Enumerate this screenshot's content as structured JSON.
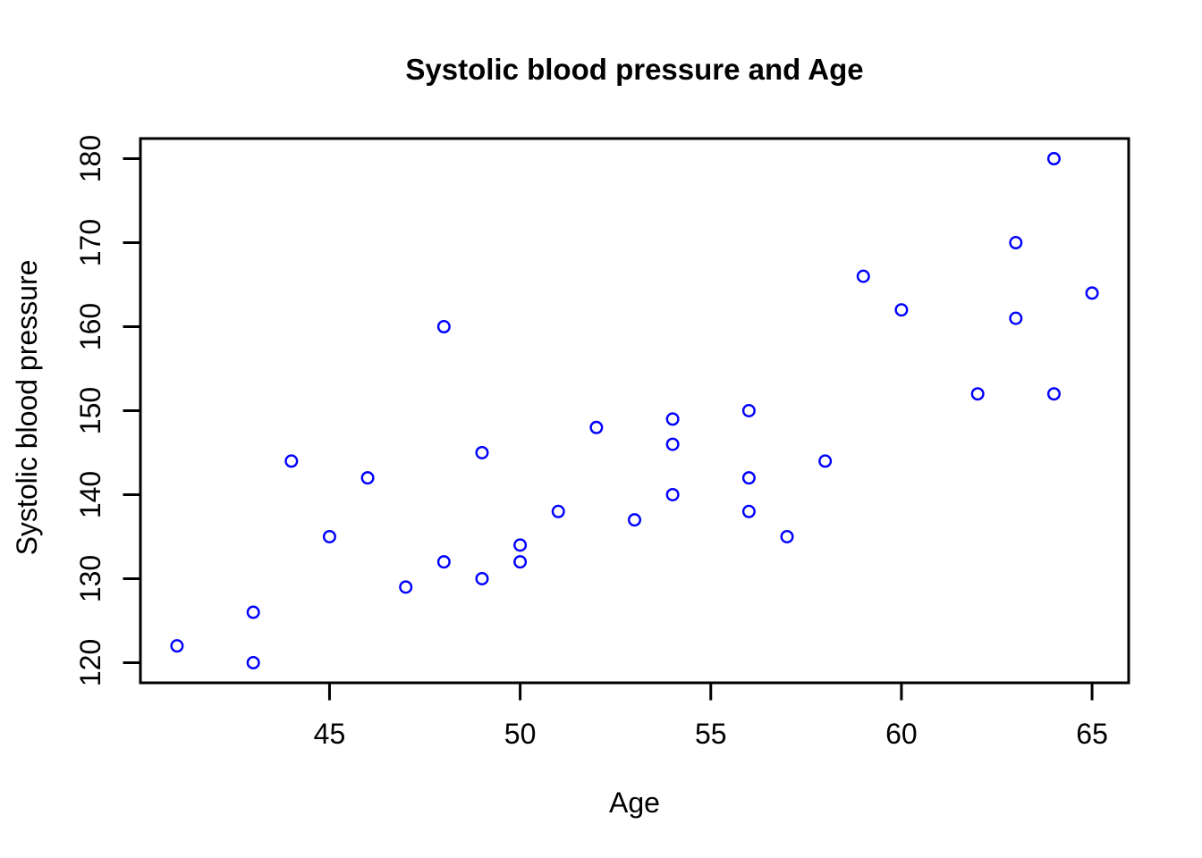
{
  "chart_data": {
    "type": "scatter",
    "title": "Systolic blood pressure and Age",
    "xlabel": "Age",
    "ylabel": "Systolic blood pressure",
    "x_ticks": [
      45,
      50,
      55,
      60,
      65
    ],
    "y_ticks": [
      120,
      130,
      140,
      150,
      160,
      170,
      180
    ],
    "xlim": [
      40.04,
      65.96
    ],
    "ylim": [
      117.6,
      182.4
    ],
    "grid": false,
    "legend": null,
    "marker": "open-circle",
    "points": [
      [
        41,
        122
      ],
      [
        43,
        120
      ],
      [
        43,
        126
      ],
      [
        44,
        144
      ],
      [
        45,
        135
      ],
      [
        46,
        142
      ],
      [
        47,
        129
      ],
      [
        48,
        132
      ],
      [
        48,
        160
      ],
      [
        49,
        130
      ],
      [
        49,
        145
      ],
      [
        50,
        132
      ],
      [
        50,
        134
      ],
      [
        51,
        138
      ],
      [
        52,
        148
      ],
      [
        53,
        137
      ],
      [
        54,
        140
      ],
      [
        54,
        146
      ],
      [
        54,
        149
      ],
      [
        56,
        138
      ],
      [
        56,
        142
      ],
      [
        56,
        150
      ],
      [
        57,
        135
      ],
      [
        58,
        144
      ],
      [
        59,
        166
      ],
      [
        60,
        162
      ],
      [
        62,
        152
      ],
      [
        63,
        161
      ],
      [
        63,
        170
      ],
      [
        64,
        152
      ],
      [
        64,
        180
      ],
      [
        65,
        164
      ]
    ]
  },
  "colors": {
    "point": "#0000FF",
    "axis": "#000000",
    "text": "#000000",
    "background": "#FFFFFF"
  }
}
